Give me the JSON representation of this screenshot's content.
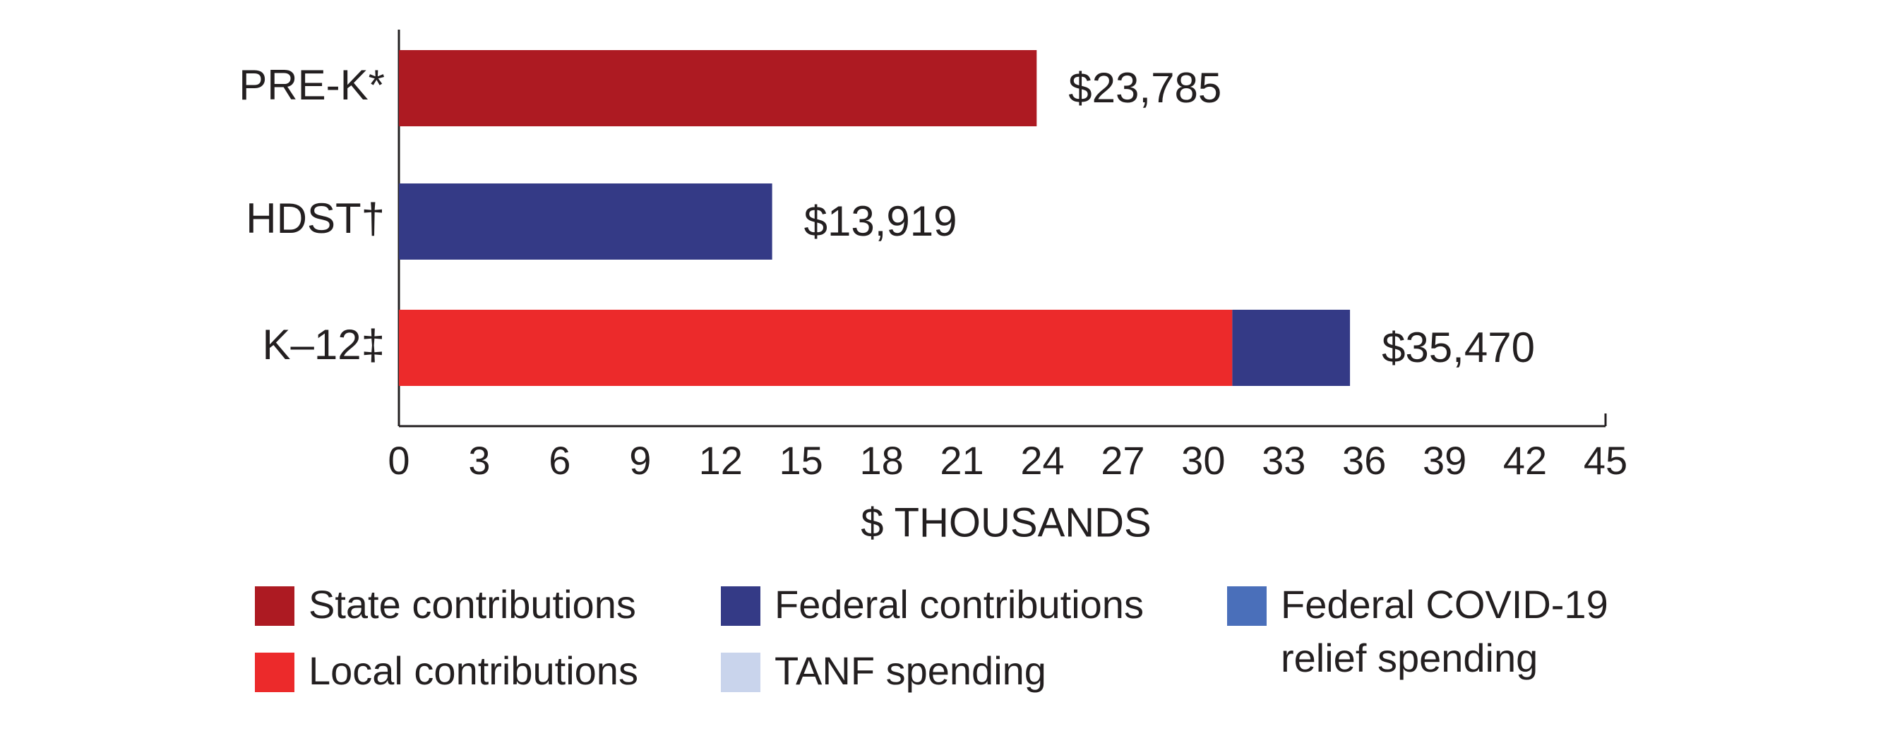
{
  "chart_data": {
    "type": "stacked_barh",
    "categories": [
      "PRE-K*",
      "HDST†",
      "K–12‡"
    ],
    "series": [
      {
        "name": "State contributions",
        "color": "#ad1a22",
        "values": [
          23.785,
          null,
          null
        ]
      },
      {
        "name": "Local contributions",
        "color": "#ec2a2b",
        "values": [
          null,
          null,
          31.08
        ]
      },
      {
        "name": "Federal contributions",
        "color": "#343a86",
        "values": [
          null,
          13.919,
          4.39
        ]
      },
      {
        "name": "TANF spending",
        "color": "#c9d4ec",
        "values": [
          null,
          null,
          null
        ]
      },
      {
        "name": "Federal COVID-19 relief spending",
        "color": "#4a6fba",
        "values": [
          null,
          null,
          null
        ]
      }
    ],
    "totals": [
      23.785,
      13.919,
      35.47
    ],
    "total_labels": [
      "$23,785",
      "$13,919",
      "$35,470"
    ],
    "xlabel": "$ THOUSANDS",
    "xlim": [
      0,
      45
    ],
    "xticks": [
      0,
      3,
      6,
      9,
      12,
      15,
      18,
      21,
      24,
      27,
      30,
      33,
      36,
      39,
      42,
      45
    ]
  }
}
